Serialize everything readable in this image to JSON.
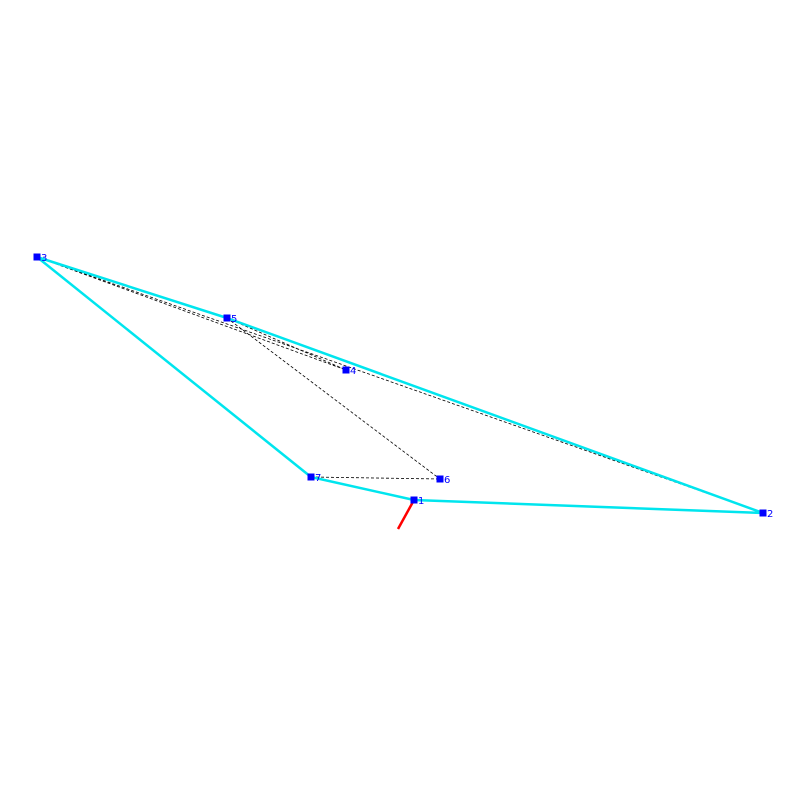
{
  "colors": {
    "background": "#ffffff",
    "hull_edge": "#00e5ee",
    "dashed_edge": "#000000",
    "node_fill": "#0000ff",
    "node_label": "#0000ff",
    "direction_marker": "#ff0000"
  },
  "nodes": [
    {
      "id": "1",
      "label": "1"
    },
    {
      "id": "2",
      "label": "2"
    },
    {
      "id": "3",
      "label": "3"
    },
    {
      "id": "4",
      "label": "4"
    },
    {
      "id": "5",
      "label": "5"
    },
    {
      "id": "6",
      "label": "6"
    },
    {
      "id": "7",
      "label": "7"
    }
  ],
  "hull_edges": [
    [
      "1",
      "2"
    ],
    [
      "2",
      "5"
    ],
    [
      "5",
      "3"
    ],
    [
      "3",
      "7"
    ],
    [
      "7",
      "1"
    ]
  ],
  "dashed_edges": [
    [
      "3",
      "4"
    ],
    [
      "3",
      "2"
    ],
    [
      "5",
      "4"
    ],
    [
      "5",
      "6"
    ],
    [
      "7",
      "6"
    ],
    [
      "1",
      "2"
    ]
  ],
  "marker": {
    "node": "1",
    "style": "short-red-line"
  }
}
